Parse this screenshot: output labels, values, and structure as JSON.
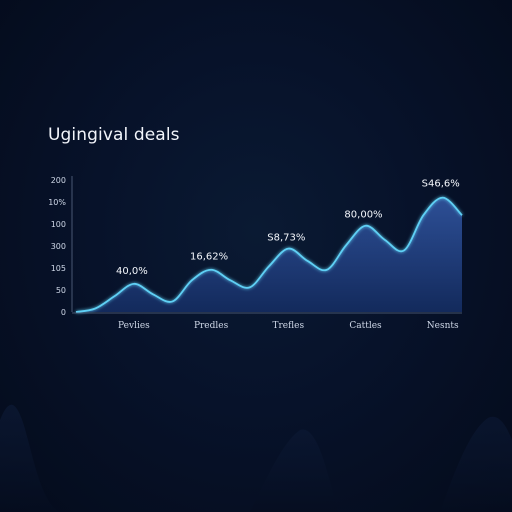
{
  "chart_data": {
    "type": "area",
    "title": "Ugingival deals",
    "yticks": [
      "200",
      "10%",
      "100",
      "300",
      "105",
      "50",
      "0"
    ],
    "categories": [
      "Pevlies",
      "Predles",
      "Trefles",
      "Cattles",
      "Nesnts"
    ],
    "series": [
      {
        "x": [
          0,
          0.5,
          1,
          1.5,
          2,
          2.5,
          3,
          3.5,
          4,
          4.5,
          5,
          5.5,
          6,
          6.5,
          7,
          7.5,
          8,
          8.5,
          9,
          9.5,
          10
        ],
        "values": [
          0,
          4,
          18,
          32,
          20,
          12,
          36,
          48,
          36,
          28,
          52,
          72,
          58,
          48,
          76,
          98,
          82,
          70,
          110,
          130,
          110
        ]
      }
    ],
    "annotations": [
      {
        "text": "40,0%",
        "x": 1.5,
        "y": 48
      },
      {
        "text": "16,62%",
        "x": 3.5,
        "y": 64
      },
      {
        "text": "S8,73%",
        "x": 5.5,
        "y": 86
      },
      {
        "text": "80,00%",
        "x": 7.5,
        "y": 112
      },
      {
        "text": "S46,6%",
        "x": 9.5,
        "y": 147
      }
    ],
    "xlim": [
      0,
      10
    ],
    "ylim": [
      0,
      150
    ],
    "colors": {
      "line": "#5fd0f5",
      "fill_top": "#2d4f96",
      "fill_bottom": "#132a5c",
      "axis": "#5a6a86",
      "background": "#07122a"
    }
  }
}
